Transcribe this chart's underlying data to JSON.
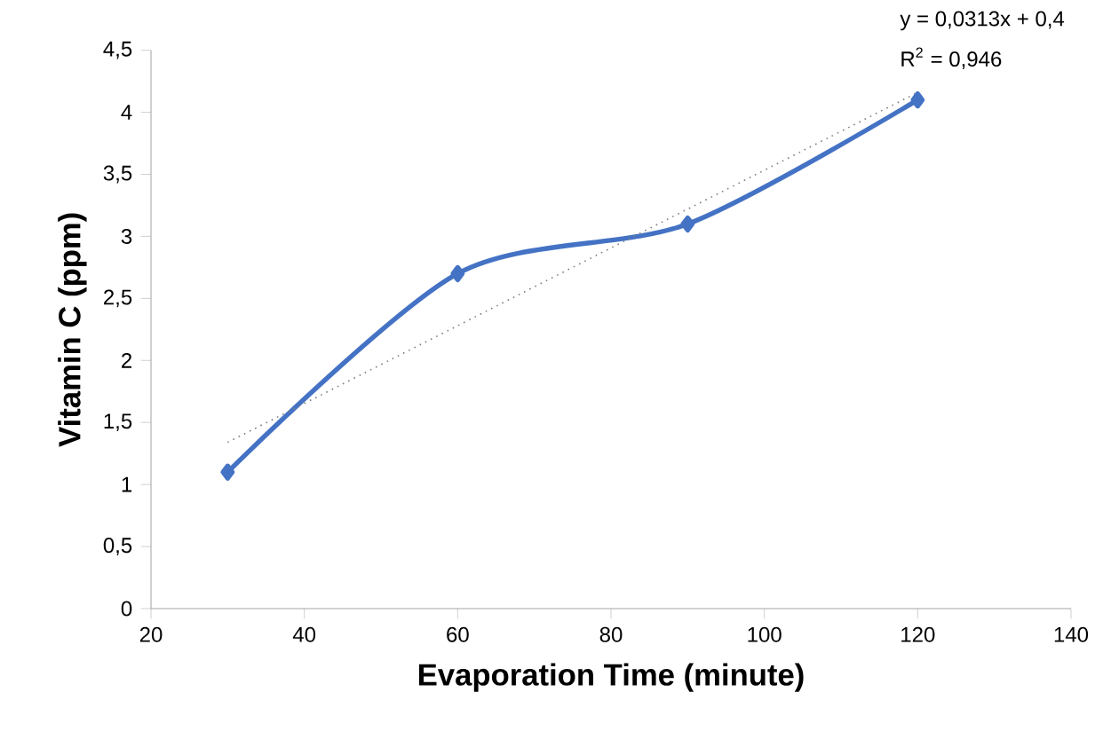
{
  "chart_data": {
    "type": "line",
    "xlabel": "Evaporation Time  (minute)",
    "ylabel": "Vitamin C (ppm)",
    "x": [
      30,
      60,
      90,
      120
    ],
    "series": [
      {
        "color": "#4472c4",
        "values": [
          1.1,
          2.7,
          3.1,
          4.1
        ],
        "marker": "diamond",
        "line_style": "solid"
      },
      {
        "type": "line",
        "color": "#7f7f7f",
        "x": [
          30,
          120
        ],
        "values": [
          1.34,
          4.16
        ],
        "marker": "none",
        "line_style": "dotted"
      }
    ],
    "xlim": [
      20,
      140
    ],
    "xticks": [
      20,
      40,
      60,
      80,
      100,
      120,
      140
    ],
    "ylim": [
      0,
      4.5
    ],
    "yticks": [
      0,
      {
        "value": 0.5,
        "label": "0,5"
      },
      1,
      {
        "value": 1.5,
        "label": "1,5"
      },
      2,
      {
        "value": 2.5,
        "label": "2,5"
      },
      3,
      {
        "value": 3.5,
        "label": "3,5"
      },
      4,
      {
        "value": 4.5,
        "label": "4,5"
      }
    ],
    "annotations": [
      "y = 0,0313x + 0,4",
      "R$^{2}$ = 0,946"
    ],
    "grid": false
  }
}
